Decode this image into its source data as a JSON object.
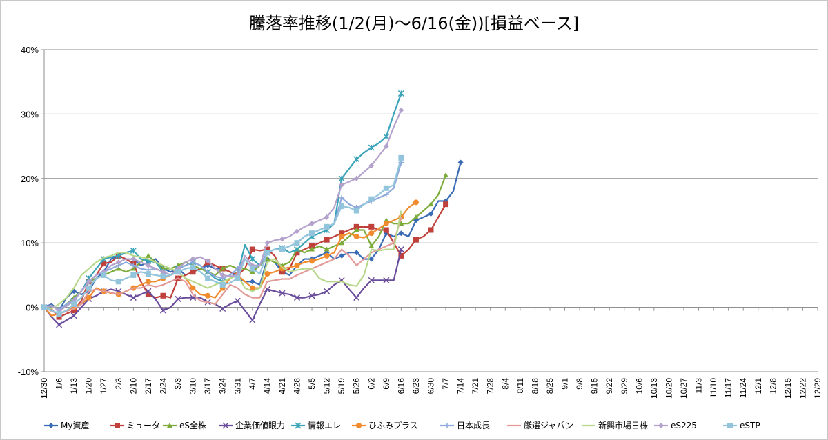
{
  "chart_data": {
    "type": "line",
    "title": "騰落率推移(1/2(月)～6/16(金))[損益ベース]",
    "ylim": [
      -0.1,
      0.4
    ],
    "yticks": [
      -0.1,
      0,
      0.1,
      0.2,
      0.3,
      0.4
    ],
    "ytick_labels": [
      "-10%",
      "0%",
      "10%",
      "20%",
      "30%",
      "40%"
    ],
    "grid": "horizontal",
    "legend_position": "bottom",
    "x_tick_labels": [
      "12/30",
      "1/6",
      "1/13",
      "1/20",
      "1/27",
      "2/3",
      "2/10",
      "2/17",
      "2/24",
      "3/3",
      "3/10",
      "3/17",
      "3/24",
      "3/31",
      "4/7",
      "4/14",
      "4/21",
      "4/28",
      "5/5",
      "5/12",
      "5/19",
      "5/26",
      "6/2",
      "6/9",
      "6/16",
      "6/23",
      "6/30",
      "7/7",
      "7/14",
      "7/21",
      "7/28",
      "8/4",
      "8/11",
      "8/18",
      "8/25",
      "9/1",
      "9/8",
      "9/15",
      "9/22",
      "9/29",
      "10/6",
      "10/13",
      "10/20",
      "10/27",
      "11/3",
      "11/10",
      "11/17",
      "11/24",
      "12/1",
      "12/8",
      "12/15",
      "12/22",
      "12/29"
    ],
    "points_per_tick": 2,
    "x_points": 105,
    "series": [
      {
        "name": "My資産",
        "color": "#3a6bb5",
        "marker": "diamond",
        "values": [
          0,
          0.005,
          -0.005,
          0.015,
          0.025,
          0.02,
          0.025,
          0.045,
          0.055,
          0.075,
          0.08,
          0.075,
          0.075,
          0.065,
          0.07,
          0.075,
          0.06,
          0.055,
          0.06,
          0.05,
          0.055,
          0.06,
          0.065,
          0.06,
          0.06,
          0.055,
          0.045,
          0.04,
          0.04,
          0.035,
          0.075,
          0.07,
          0.055,
          0.05,
          0.065,
          0.075,
          0.075,
          0.08,
          0.085,
          0.075,
          0.08,
          0.085,
          0.085,
          0.075,
          0.075,
          0.09,
          0.115,
          0.11,
          0.115,
          0.11,
          0.135,
          0.14,
          0.145,
          0.165,
          0.165,
          0.18,
          0.225
        ]
      },
      {
        "name": "ミュータ",
        "color": "#c0413b",
        "marker": "square",
        "values": [
          0,
          -0.003,
          -0.015,
          -0.01,
          -0.005,
          0.01,
          0.04,
          0.05,
          0.068,
          0.07,
          0.08,
          0.075,
          0.068,
          0.04,
          0.02,
          0.015,
          0.018,
          0.015,
          0.045,
          0.05,
          0.055,
          0.06,
          0.07,
          0.065,
          0.06,
          0.055,
          0.05,
          0.06,
          0.09,
          0.088,
          0.09,
          0.08,
          0.055,
          0.06,
          0.085,
          0.09,
          0.095,
          0.1,
          0.105,
          0.11,
          0.115,
          0.12,
          0.125,
          0.125,
          0.125,
          0.12,
          0.12,
          0.1,
          0.08,
          0.09,
          0.105,
          0.11,
          0.12,
          0.14,
          0.16
        ]
      },
      {
        "name": "eS全株",
        "color": "#7cab3a",
        "marker": "triangle",
        "values": [
          0,
          0.003,
          -0.005,
          0.005,
          0.015,
          0.025,
          0.04,
          0.045,
          0.05,
          0.055,
          0.06,
          0.055,
          0.06,
          0.07,
          0.08,
          0.07,
          0.06,
          0.06,
          0.065,
          0.07,
          0.065,
          0.06,
          0.055,
          0.05,
          0.06,
          0.065,
          0.06,
          0.06,
          0.055,
          0.065,
          0.075,
          0.07,
          0.065,
          0.07,
          0.09,
          0.085,
          0.09,
          0.095,
          0.09,
          0.095,
          0.1,
          0.11,
          0.12,
          0.12,
          0.095,
          0.11,
          0.135,
          0.13,
          0.13,
          0.13,
          0.14,
          0.15,
          0.16,
          0.175,
          0.205
        ]
      },
      {
        "name": "企業価値眼力",
        "color": "#6a4c9c",
        "marker": "x",
        "values": [
          0,
          -0.015,
          -0.027,
          -0.02,
          -0.013,
          0,
          0.013,
          0.018,
          0.025,
          0.028,
          0.025,
          0.02,
          0.015,
          0.02,
          0.025,
          0.012,
          -0.005,
          0,
          0.013,
          0.015,
          0.015,
          0.015,
          0.008,
          0.005,
          -0.002,
          0.005,
          0.01,
          -0.005,
          -0.02,
          0.005,
          0.028,
          0.025,
          0.022,
          0.02,
          0.015,
          0.015,
          0.018,
          0.02,
          0.025,
          0.035,
          0.042,
          0.028,
          0.015,
          0.03,
          0.042,
          0.042,
          0.042,
          0.042,
          0.09
        ]
      },
      {
        "name": "情報エレ",
        "color": "#3aa3b8",
        "marker": "asterisk",
        "values": [
          0,
          0.003,
          -0.005,
          0.002,
          0.01,
          0.025,
          0.045,
          0.06,
          0.075,
          0.078,
          0.08,
          0.085,
          0.088,
          0.075,
          0.072,
          0.07,
          0.055,
          0.05,
          0.06,
          0.065,
          0.07,
          0.065,
          0.055,
          0.045,
          0.04,
          0.045,
          0.05,
          0.097,
          0.075,
          0.065,
          0.085,
          0.09,
          0.092,
          0.085,
          0.09,
          0.1,
          0.11,
          0.115,
          0.12,
          0.13,
          0.2,
          0.215,
          0.23,
          0.24,
          0.248,
          0.255,
          0.265,
          0.3,
          0.332
        ]
      },
      {
        "name": "ひふみプラス",
        "color": "#f08c2e",
        "marker": "circle",
        "values": [
          0,
          -0.013,
          -0.01,
          -0.005,
          0,
          0.005,
          0.015,
          0.03,
          0.025,
          0.022,
          0.02,
          0.025,
          0.03,
          0.035,
          0.04,
          0.04,
          0.045,
          0.05,
          0.055,
          0.045,
          0.03,
          0.02,
          0.018,
          0.015,
          0.03,
          0.045,
          0.05,
          0.04,
          0.03,
          0.03,
          0.052,
          0.055,
          0.06,
          0.062,
          0.065,
          0.07,
          0.072,
          0.075,
          0.08,
          0.085,
          0.11,
          0.115,
          0.11,
          0.108,
          0.115,
          0.122,
          0.13,
          0.135,
          0.14,
          0.155,
          0.163
        ]
      },
      {
        "name": "日本成長",
        "color": "#8ea9dc",
        "marker": "plus",
        "values": [
          0,
          0.002,
          -0.003,
          0.005,
          0.012,
          0.025,
          0.04,
          0.05,
          0.055,
          0.06,
          0.065,
          0.07,
          0.065,
          0.06,
          0.058,
          0.06,
          0.055,
          0.05,
          0.06,
          0.065,
          0.07,
          0.065,
          0.055,
          0.048,
          0.045,
          0.05,
          0.06,
          0.075,
          0.06,
          0.065,
          0.085,
          0.09,
          0.09,
          0.095,
          0.1,
          0.11,
          0.115,
          0.12,
          0.125,
          0.13,
          0.17,
          0.16,
          0.155,
          0.16,
          0.165,
          0.17,
          0.175,
          0.185,
          0.225
        ]
      },
      {
        "name": "厳選ジャパン",
        "color": "#e29a98",
        "marker": "none",
        "values": [
          0,
          -0.006,
          -0.01,
          -0.006,
          -0.002,
          0.005,
          0.025,
          0.028,
          0.025,
          0.023,
          0.02,
          0.025,
          0.03,
          0.03,
          0.035,
          0.032,
          0.035,
          0.04,
          0.045,
          0.04,
          0.02,
          0.01,
          0.008,
          0.005,
          0.02,
          0.035,
          0.03,
          0.02,
          0.015,
          0.015,
          0.04,
          0.042,
          0.044,
          0.044,
          0.05,
          0.055,
          0.06,
          0.065,
          0.07,
          0.075,
          0.09,
          0.08,
          0.065,
          0.075,
          0.085,
          0.09,
          0.095,
          0.1,
          0.14
        ]
      },
      {
        "name": "新興市場日株",
        "color": "#b7d88a",
        "marker": "none",
        "values": [
          0,
          -0.002,
          0.005,
          0.015,
          0.03,
          0.05,
          0.06,
          0.07,
          0.077,
          0.08,
          0.085,
          0.085,
          0.08,
          0.078,
          0.075,
          0.07,
          0.065,
          0.06,
          0.055,
          0.045,
          0.04,
          0.035,
          0.03,
          0.035,
          0.04,
          0.045,
          0.05,
          0.03,
          0.025,
          0.03,
          0.07,
          0.075,
          0.062,
          0.055,
          0.058,
          0.06,
          0.06,
          0.045,
          0.04,
          0.04,
          0.04,
          0.035,
          0.033,
          0.05,
          0.09,
          0.088,
          0.09,
          0.09,
          0.15
        ]
      },
      {
        "name": "eS225",
        "color": "#b3a2cc",
        "marker": "diamond",
        "values": [
          0,
          0.003,
          -0.006,
          0.002,
          0.01,
          0.025,
          0.04,
          0.05,
          0.055,
          0.065,
          0.07,
          0.075,
          0.075,
          0.07,
          0.065,
          0.06,
          0.055,
          0.05,
          0.06,
          0.07,
          0.075,
          0.078,
          0.072,
          0.06,
          0.05,
          0.048,
          0.05,
          0.08,
          0.065,
          0.065,
          0.1,
          0.104,
          0.106,
          0.11,
          0.118,
          0.125,
          0.13,
          0.135,
          0.14,
          0.155,
          0.19,
          0.195,
          0.2,
          0.21,
          0.22,
          0.235,
          0.25,
          0.28,
          0.306
        ]
      },
      {
        "name": "eSTP",
        "color": "#92c5dc",
        "marker": "square",
        "values": [
          0,
          -0.005,
          -0.01,
          -0.005,
          0.005,
          0.015,
          0.03,
          0.045,
          0.05,
          0.042,
          0.04,
          0.045,
          0.05,
          0.055,
          0.052,
          0.05,
          0.048,
          0.05,
          0.055,
          0.06,
          0.062,
          0.055,
          0.045,
          0.04,
          0.035,
          0.038,
          0.045,
          0.075,
          0.06,
          0.052,
          0.085,
          0.09,
          0.09,
          0.095,
          0.1,
          0.11,
          0.115,
          0.12,
          0.125,
          0.13,
          0.157,
          0.155,
          0.15,
          0.16,
          0.168,
          0.175,
          0.185,
          0.19,
          0.232
        ]
      }
    ]
  }
}
